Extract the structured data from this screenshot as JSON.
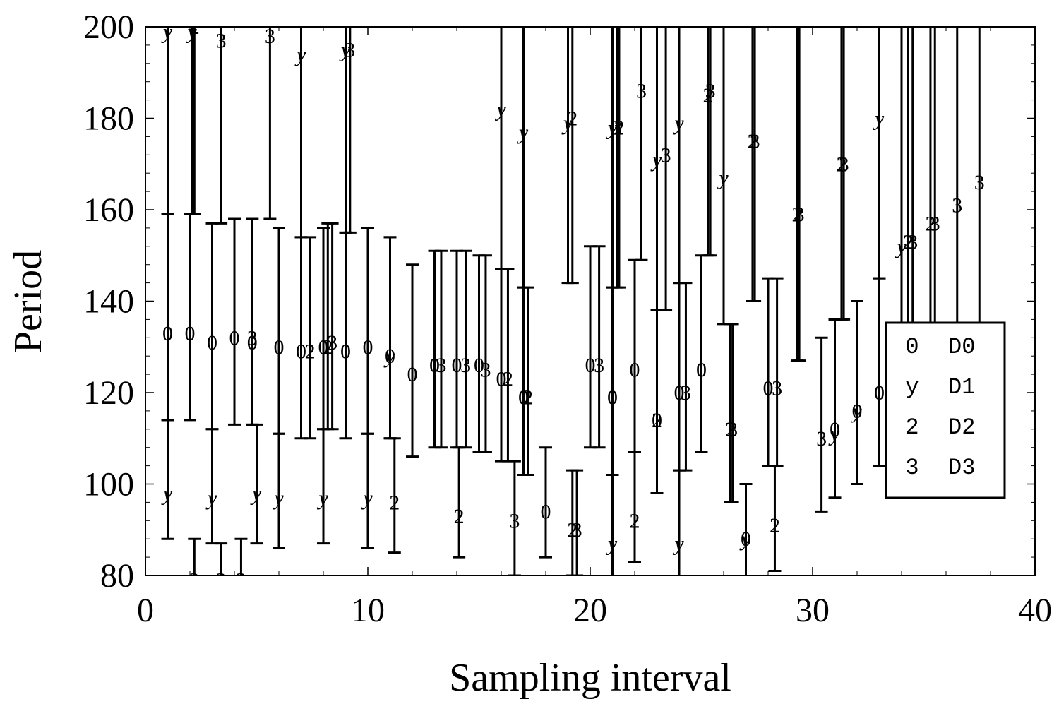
{
  "chart_data": {
    "type": "scatter",
    "xlabel": "Sampling interval",
    "ylabel": "Period",
    "xlim": [
      0,
      40
    ],
    "ylim": [
      80,
      200
    ],
    "x_ticks": [
      "0",
      "10",
      "20",
      "30",
      "40"
    ],
    "y_ticks": [
      "80",
      "100",
      "120",
      "140",
      "160",
      "180",
      "200"
    ],
    "grid": false,
    "legend": {
      "placement": "right",
      "entries": [
        {
          "symbol": "0",
          "label": "D0"
        },
        {
          "symbol": "y",
          "label": "D1"
        },
        {
          "symbol": "2",
          "label": "D2"
        },
        {
          "symbol": "3",
          "label": "D3"
        }
      ]
    },
    "series": [
      {
        "name": "D0",
        "symbol": "0",
        "points": [
          {
            "x": 1.0,
            "y": 133,
            "low": 114,
            "high": 159
          },
          {
            "x": 2.0,
            "y": 133,
            "low": 114,
            "high": 159
          },
          {
            "x": 3.0,
            "y": 131,
            "low": 112,
            "high": 157
          },
          {
            "x": 4.0,
            "y": 132,
            "low": 113,
            "high": 158
          },
          {
            "x": 4.8,
            "y": 131,
            "low": 113,
            "high": 158
          },
          {
            "x": 6.0,
            "y": 130,
            "low": 111,
            "high": 156
          },
          {
            "x": 7.0,
            "y": 129,
            "low": 110,
            "high": 154
          },
          {
            "x": 8.0,
            "y": 130,
            "low": 112,
            "high": 156
          },
          {
            "x": 9.0,
            "y": 129,
            "low": 110,
            "high": 155
          },
          {
            "x": 10.0,
            "y": 130,
            "low": 111,
            "high": 156
          },
          {
            "x": 11.0,
            "y": 128,
            "low": 110,
            "high": 154
          },
          {
            "x": 12.0,
            "y": 124,
            "low": 106,
            "high": 148
          },
          {
            "x": 13.0,
            "y": 126,
            "low": 108,
            "high": 151
          },
          {
            "x": 14.0,
            "y": 126,
            "low": 108,
            "high": 151
          },
          {
            "x": 15.0,
            "y": 126,
            "low": 107,
            "high": 150
          },
          {
            "x": 16.0,
            "y": 123,
            "low": 105,
            "high": 147
          },
          {
            "x": 17.0,
            "y": 119,
            "low": 102,
            "high": 143
          },
          {
            "x": 18.0,
            "y": 94,
            "low": 84,
            "high": 108
          },
          {
            "x": 20.0,
            "y": 126,
            "low": 108,
            "high": 152
          },
          {
            "x": 21.0,
            "y": 119,
            "low": 102,
            "high": 143
          },
          {
            "x": 22.0,
            "y": 125,
            "low": 107,
            "high": 149
          },
          {
            "x": 23.0,
            "y": 114,
            "low": 98,
            "high": 138
          },
          {
            "x": 24.0,
            "y": 120,
            "low": 103,
            "high": 144
          },
          {
            "x": 25.0,
            "y": 125,
            "low": 107,
            "high": 150
          },
          {
            "x": 27.0,
            "y": 88,
            "low": 76,
            "high": 100
          },
          {
            "x": 28.0,
            "y": 121,
            "low": 104,
            "high": 145
          },
          {
            "x": 31.0,
            "y": 112,
            "low": 97,
            "high": 136
          },
          {
            "x": 32.0,
            "y": 116,
            "low": 100,
            "high": 140
          },
          {
            "x": 33.0,
            "y": 120,
            "low": 104,
            "high": 145
          }
        ]
      },
      {
        "name": "D1",
        "symbol": "y",
        "points": [
          {
            "x": 1.0,
            "y": 98,
            "low": 88,
            "high": 114
          },
          {
            "x": 1.0,
            "y": 199,
            "low": 159,
            "high": 240
          },
          {
            "x": 2.1,
            "y": 199,
            "low": 159,
            "high": 240
          },
          {
            "x": 3.0,
            "y": 97,
            "low": 87,
            "high": 112
          },
          {
            "x": 5.0,
            "y": 98,
            "low": 87,
            "high": 113
          },
          {
            "x": 6.0,
            "y": 97,
            "low": 86,
            "high": 111
          },
          {
            "x": 7.0,
            "y": 194,
            "low": 154,
            "high": 240
          },
          {
            "x": 8.0,
            "y": 97,
            "low": 87,
            "high": 112
          },
          {
            "x": 9.0,
            "y": 195,
            "low": 155,
            "high": 240
          },
          {
            "x": 10.0,
            "y": 97,
            "low": 86,
            "high": 111
          },
          {
            "x": 11.0,
            "y": 128,
            "low": 110,
            "high": 154
          },
          {
            "x": 16.0,
            "y": 182,
            "low": 147,
            "high": 240
          },
          {
            "x": 17.0,
            "y": 177,
            "low": 143,
            "high": 240
          },
          {
            "x": 19.0,
            "y": 179,
            "low": 144,
            "high": 240
          },
          {
            "x": 21.0,
            "y": 87,
            "low": 70,
            "high": 102
          },
          {
            "x": 21.0,
            "y": 178,
            "low": 143,
            "high": 240
          },
          {
            "x": 23.0,
            "y": 171,
            "low": 138,
            "high": 240
          },
          {
            "x": 24.0,
            "y": 87,
            "low": 70,
            "high": 103
          },
          {
            "x": 24.0,
            "y": 179,
            "low": 144,
            "high": 240
          },
          {
            "x": 26.0,
            "y": 167,
            "low": 135,
            "high": 240
          },
          {
            "x": 27.0,
            "y": 88,
            "low": 76,
            "high": 100
          },
          {
            "x": 31.0,
            "y": 111,
            "low": 97,
            "high": 136
          },
          {
            "x": 32.0,
            "y": 116,
            "low": 100,
            "high": 140
          },
          {
            "x": 33.0,
            "y": 180,
            "low": 145,
            "high": 240
          },
          {
            "x": 34.0,
            "y": 152,
            "low": 135,
            "high": 240
          }
        ]
      },
      {
        "name": "D2",
        "symbol": "2",
        "points": [
          {
            "x": 2.2,
            "y": 79,
            "low": 70,
            "high": 88
          },
          {
            "x": 2.2,
            "y": 200,
            "low": 159,
            "high": 240
          },
          {
            "x": 7.4,
            "y": 129,
            "low": 110,
            "high": 154
          },
          {
            "x": 8.2,
            "y": 130,
            "low": 112,
            "high": 157
          },
          {
            "x": 11.2,
            "y": 96,
            "low": 85,
            "high": 110
          },
          {
            "x": 14.1,
            "y": 93,
            "low": 84,
            "high": 108
          },
          {
            "x": 16.3,
            "y": 123,
            "low": 105,
            "high": 147
          },
          {
            "x": 17.2,
            "y": 119,
            "low": 102,
            "high": 143
          },
          {
            "x": 19.2,
            "y": 90,
            "low": 80,
            "high": 103
          },
          {
            "x": 19.2,
            "y": 180,
            "low": 144,
            "high": 240
          },
          {
            "x": 21.3,
            "y": 178,
            "low": 143,
            "high": 240
          },
          {
            "x": 22.0,
            "y": 92,
            "low": 83,
            "high": 107
          },
          {
            "x": 23.0,
            "y": 114,
            "low": 98,
            "high": 138
          },
          {
            "x": 25.3,
            "y": 185,
            "low": 150,
            "high": 240
          },
          {
            "x": 26.3,
            "y": 112,
            "low": 96,
            "high": 135
          },
          {
            "x": 27.3,
            "y": 175,
            "low": 140,
            "high": 240
          },
          {
            "x": 28.3,
            "y": 91,
            "low": 81,
            "high": 104
          },
          {
            "x": 29.3,
            "y": 159,
            "low": 127,
            "high": 240
          },
          {
            "x": 31.3,
            "y": 170,
            "low": 136,
            "high": 240
          },
          {
            "x": 34.3,
            "y": 153,
            "low": 135,
            "high": 240
          },
          {
            "x": 35.3,
            "y": 157,
            "low": 135,
            "high": 240
          }
        ]
      },
      {
        "name": "D3",
        "symbol": "3",
        "points": [
          {
            "x": 3.4,
            "y": 197,
            "low": 157,
            "high": 240
          },
          {
            "x": 3.4,
            "y": 79,
            "low": 70,
            "high": 87
          },
          {
            "x": 4.3,
            "y": 79,
            "low": 70,
            "high": 88
          },
          {
            "x": 4.8,
            "y": 132,
            "low": 113,
            "high": 158
          },
          {
            "x": 5.6,
            "y": 198,
            "low": 158,
            "high": 240
          },
          {
            "x": 9.2,
            "y": 195,
            "low": 155,
            "high": 240
          },
          {
            "x": 8.4,
            "y": 131,
            "low": 112,
            "high": 157
          },
          {
            "x": 13.3,
            "y": 126,
            "low": 108,
            "high": 151
          },
          {
            "x": 14.4,
            "y": 126,
            "low": 108,
            "high": 151
          },
          {
            "x": 15.3,
            "y": 125,
            "low": 107,
            "high": 150
          },
          {
            "x": 16.6,
            "y": 92,
            "low": 80,
            "high": 105
          },
          {
            "x": 19.4,
            "y": 90,
            "low": 80,
            "high": 103
          },
          {
            "x": 20.4,
            "y": 126,
            "low": 108,
            "high": 152
          },
          {
            "x": 21.2,
            "y": 178,
            "low": 143,
            "high": 240
          },
          {
            "x": 22.3,
            "y": 186,
            "low": 149,
            "high": 240
          },
          {
            "x": 23.4,
            "y": 172,
            "low": 138,
            "high": 240
          },
          {
            "x": 24.3,
            "y": 120,
            "low": 103,
            "high": 144
          },
          {
            "x": 25.4,
            "y": 186,
            "low": 150,
            "high": 240
          },
          {
            "x": 26.4,
            "y": 112,
            "low": 96,
            "high": 135
          },
          {
            "x": 27.4,
            "y": 175,
            "low": 140,
            "high": 240
          },
          {
            "x": 28.4,
            "y": 121,
            "low": 104,
            "high": 145
          },
          {
            "x": 29.4,
            "y": 159,
            "low": 127,
            "high": 240
          },
          {
            "x": 30.4,
            "y": 110,
            "low": 94,
            "high": 132
          },
          {
            "x": 31.4,
            "y": 170,
            "low": 136,
            "high": 240
          },
          {
            "x": 34.5,
            "y": 153,
            "low": 135,
            "high": 240
          },
          {
            "x": 35.5,
            "y": 157,
            "low": 135,
            "high": 240
          },
          {
            "x": 36.5,
            "y": 161,
            "low": 135,
            "high": 240
          },
          {
            "x": 37.5,
            "y": 166,
            "low": 135,
            "high": 240
          }
        ]
      }
    ]
  }
}
